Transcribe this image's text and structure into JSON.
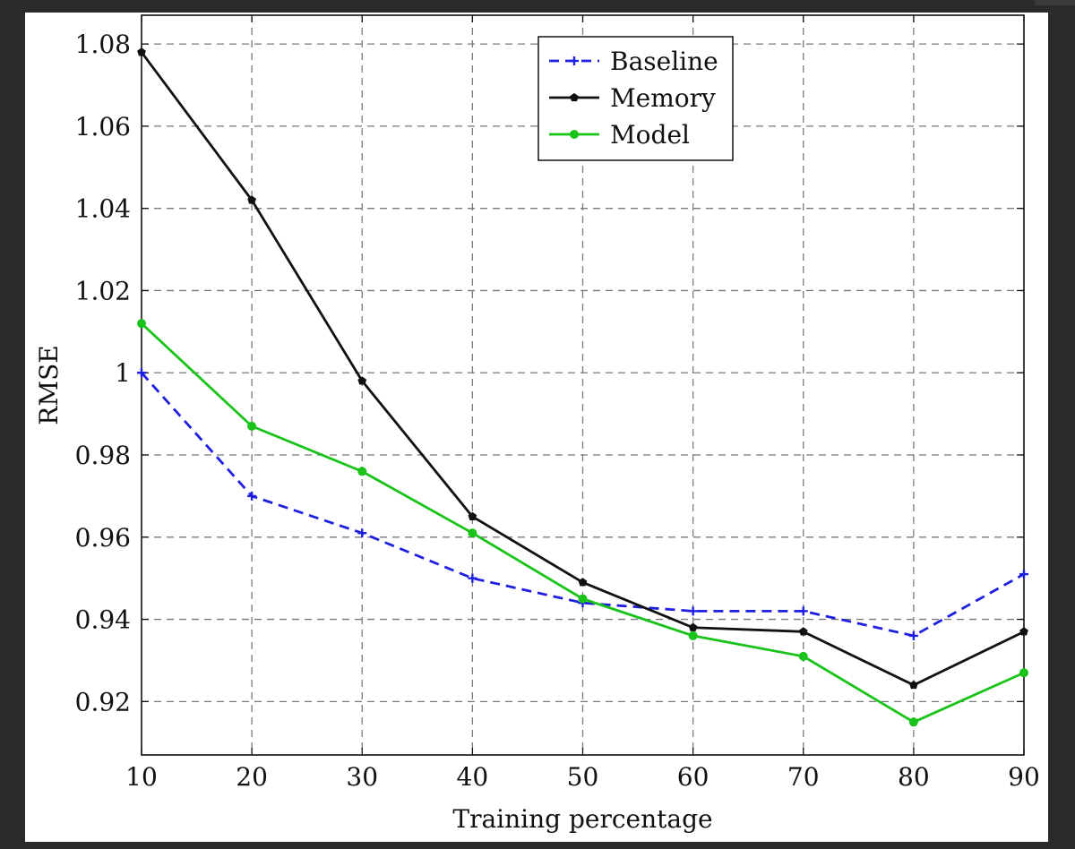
{
  "chart_data": {
    "type": "line",
    "x": [
      10,
      20,
      30,
      40,
      50,
      60,
      70,
      80,
      90
    ],
    "xlabel": "Training percentage",
    "ylabel": "RMSE",
    "xlim": [
      10,
      90
    ],
    "ylim": [
      0.907,
      1.087
    ],
    "xticks": [
      "10",
      "20",
      "30",
      "40",
      "50",
      "60",
      "70",
      "80",
      "90"
    ],
    "yticks": [
      "0.92",
      "0.94",
      "0.96",
      "0.98",
      "1",
      "1.02",
      "1.04",
      "1.06",
      "1.08"
    ],
    "ytick_values": [
      0.92,
      0.94,
      0.96,
      0.98,
      1.0,
      1.02,
      1.04,
      1.06,
      1.08
    ],
    "grid": true,
    "legend_position": "top-right",
    "series": [
      {
        "name": "Baseline",
        "color": "#1f1fe0",
        "style": "dashed",
        "marker": "plus",
        "values": [
          1.0,
          0.97,
          0.961,
          0.95,
          0.944,
          0.942,
          0.942,
          0.936,
          0.951
        ]
      },
      {
        "name": "Memory",
        "color": "#111111",
        "style": "solid",
        "marker": "pentagon",
        "values": [
          1.078,
          1.042,
          0.998,
          0.965,
          0.949,
          0.938,
          0.937,
          0.924,
          0.937
        ]
      },
      {
        "name": "Model",
        "color": "#19c319",
        "style": "solid",
        "marker": "circle",
        "values": [
          1.012,
          0.987,
          0.976,
          0.961,
          0.945,
          0.936,
          0.931,
          0.915,
          0.927
        ]
      }
    ]
  }
}
